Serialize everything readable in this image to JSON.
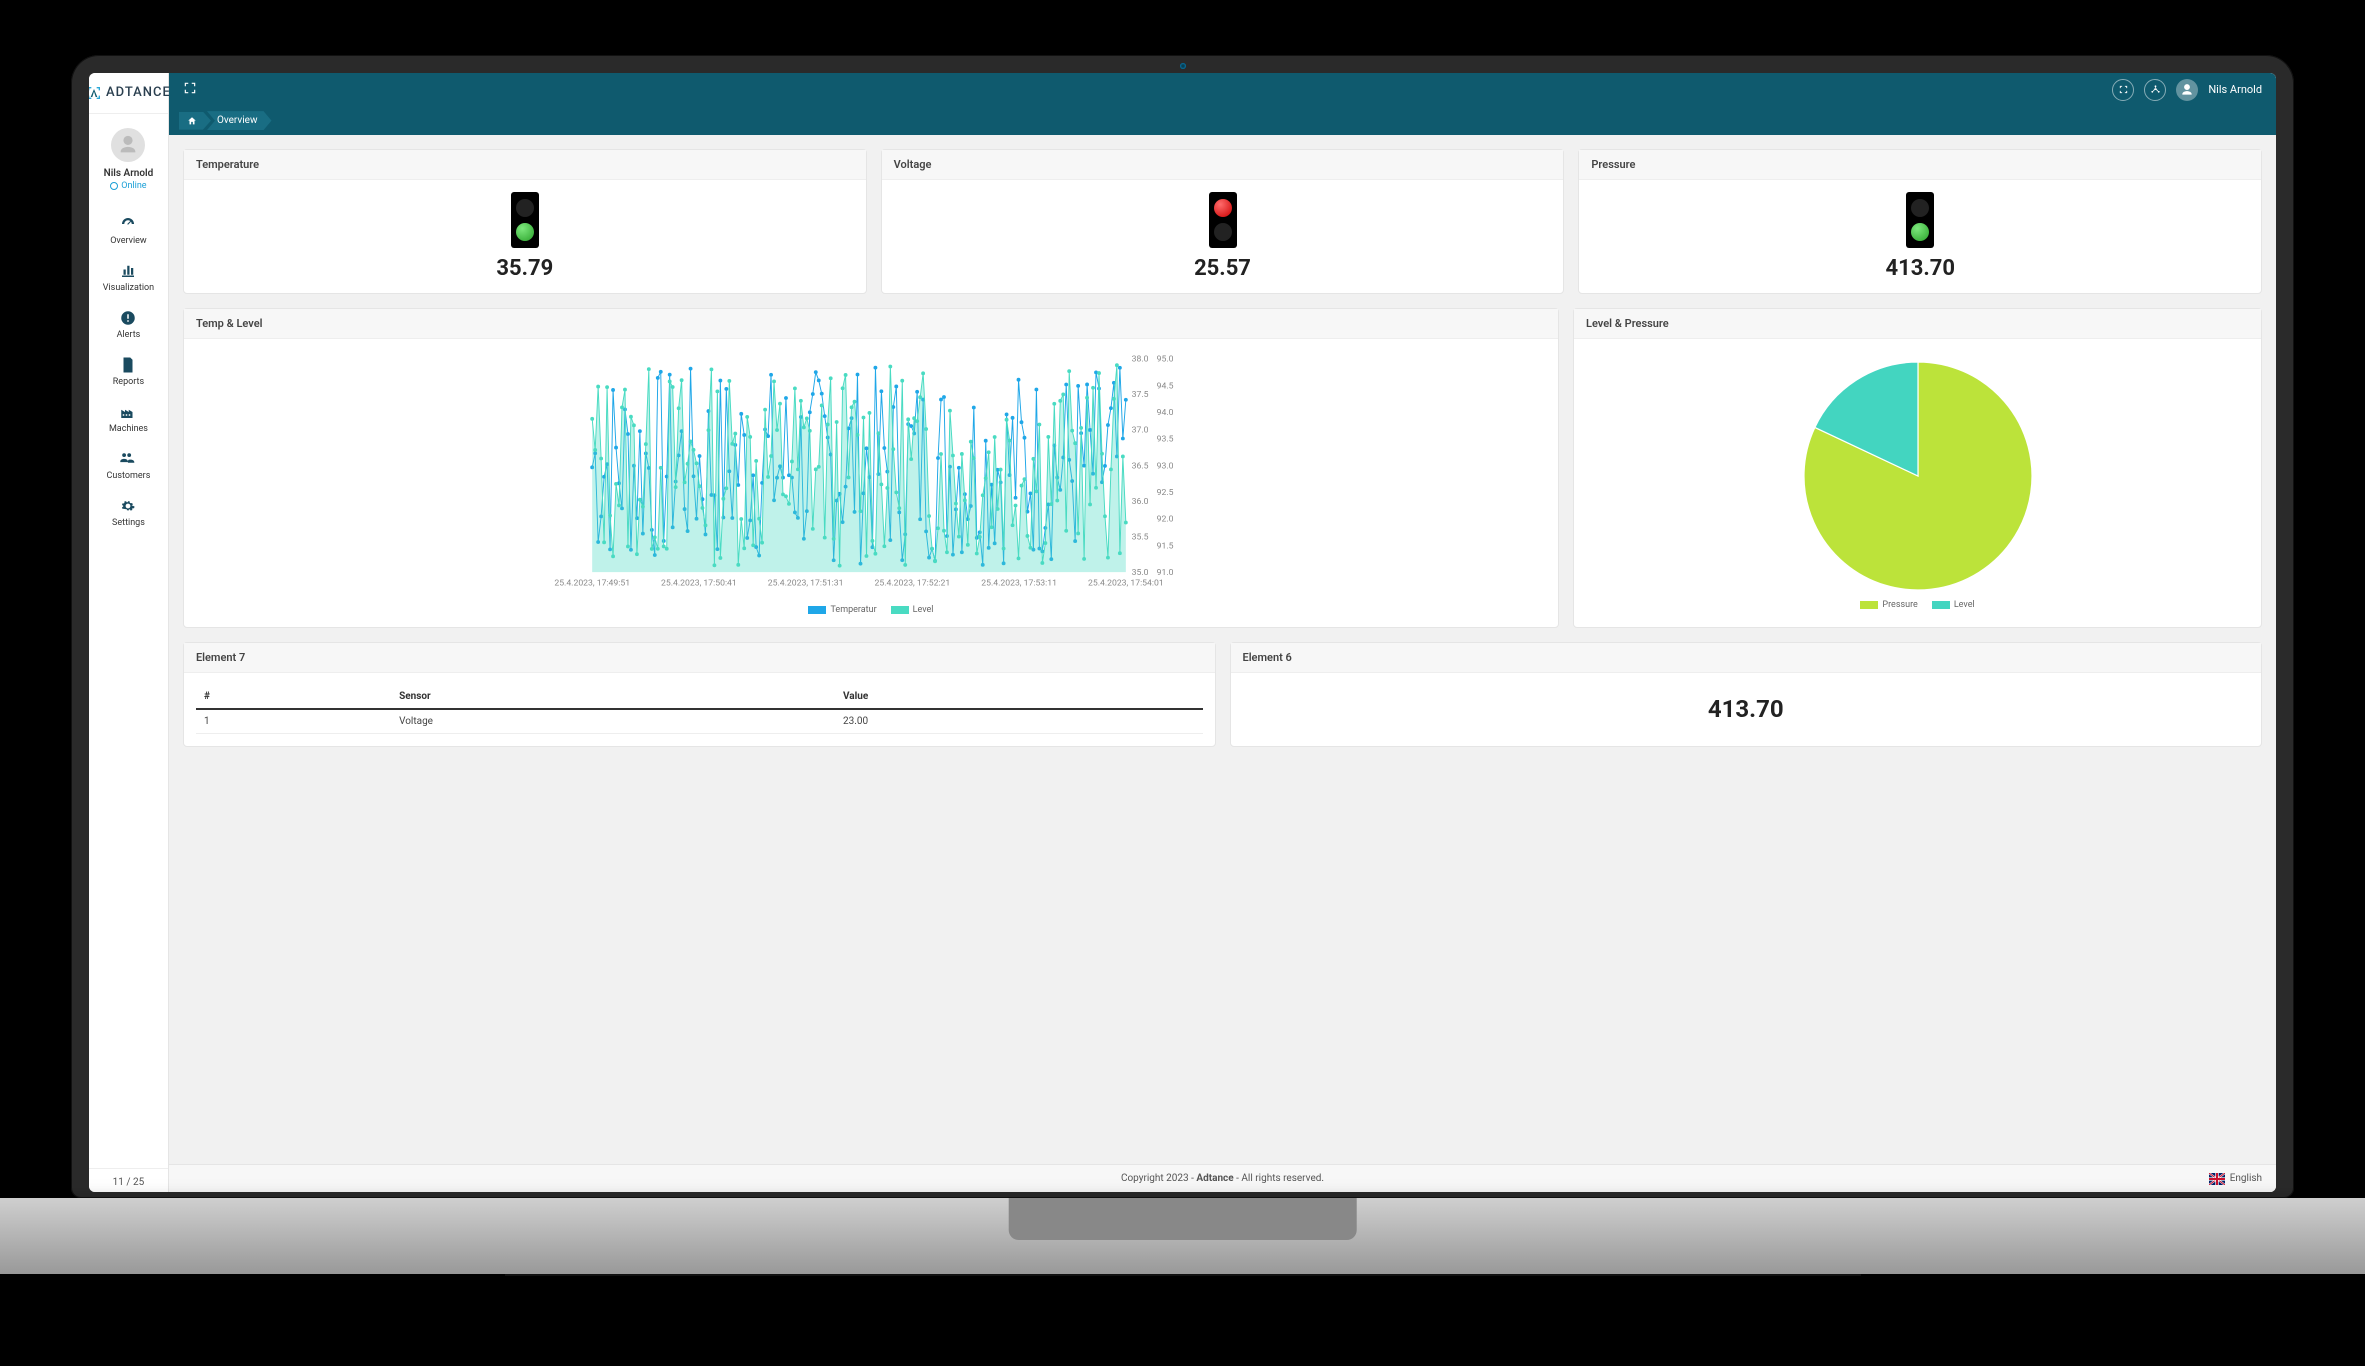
{
  "brand": {
    "name": "ADTANCE",
    "accent": "#0f5a6e",
    "mark_color": "#2aa7d6"
  },
  "user": {
    "name": "Nils Arnold",
    "status": "Online"
  },
  "sidebar": {
    "items": [
      {
        "label": "Overview",
        "icon": "gauge"
      },
      {
        "label": "Visualization",
        "icon": "chart"
      },
      {
        "label": "Alerts",
        "icon": "alert"
      },
      {
        "label": "Reports",
        "icon": "report"
      },
      {
        "label": "Machines",
        "icon": "factory"
      },
      {
        "label": "Customers",
        "icon": "people"
      },
      {
        "label": "Settings",
        "icon": "gears"
      }
    ],
    "footer": "11 / 25"
  },
  "breadcrumb": {
    "current": "Overview"
  },
  "traffic_cards": [
    {
      "title": "Temperature",
      "value": "35.79",
      "status": "green"
    },
    {
      "title": "Voltage",
      "value": "25.57",
      "status": "red"
    },
    {
      "title": "Pressure",
      "value": "413.70",
      "status": "green"
    }
  ],
  "line_chart": {
    "title": "Temp & Level",
    "type": "line",
    "series": [
      {
        "name": "Temperatur",
        "color": "#1fa7e8",
        "axis": "left"
      },
      {
        "name": "Level",
        "color": "#49dbc2",
        "axis": "right"
      }
    ],
    "left_axis": {
      "min": 35.0,
      "max": 38.0,
      "step": 0.5,
      "label_fontsize": 9,
      "label_color": "#888"
    },
    "right_axis": {
      "min": 91.0,
      "max": 95.0,
      "step": 0.5,
      "label_fontsize": 9,
      "label_color": "#888"
    },
    "x_ticks": [
      "25.4.2023, 17:49:51",
      "25.4.2023, 17:50:41",
      "25.4.2023, 17:51:31",
      "25.4.2023, 17:52:21",
      "25.4.2023, 17:53:11",
      "25.4.2023, 17:54:01"
    ],
    "x_label_fontsize": 9,
    "x_label_color": "#888",
    "n_points": 180,
    "marker": "circle",
    "marker_size": 2,
    "line_width": 1,
    "grid": false,
    "background_color": "#ffffff",
    "legend_fontsize": 9
  },
  "pie_chart": {
    "title": "Level & Pressure",
    "type": "pie",
    "slices": [
      {
        "name": "Pressure",
        "value": 82,
        "color": "#bce33a"
      },
      {
        "name": "Level",
        "value": 18,
        "color": "#43d5c0"
      }
    ],
    "start_angle_deg": -90,
    "stroke_color": "#ffffff",
    "stroke_width": 1,
    "legend_fontsize": 9,
    "background_color": "#ffffff"
  },
  "table_card": {
    "title": "Element 7",
    "columns": [
      "#",
      "Sensor",
      "Value"
    ],
    "rows": [
      [
        "1",
        "Voltage",
        "23.00"
      ]
    ]
  },
  "value_card": {
    "title": "Element 6",
    "value": "413.70"
  },
  "footer": {
    "copyright_prefix": "Copyright 2023 - ",
    "brand": "Adtance",
    "suffix": " - All rights reserved.",
    "language": "English"
  }
}
